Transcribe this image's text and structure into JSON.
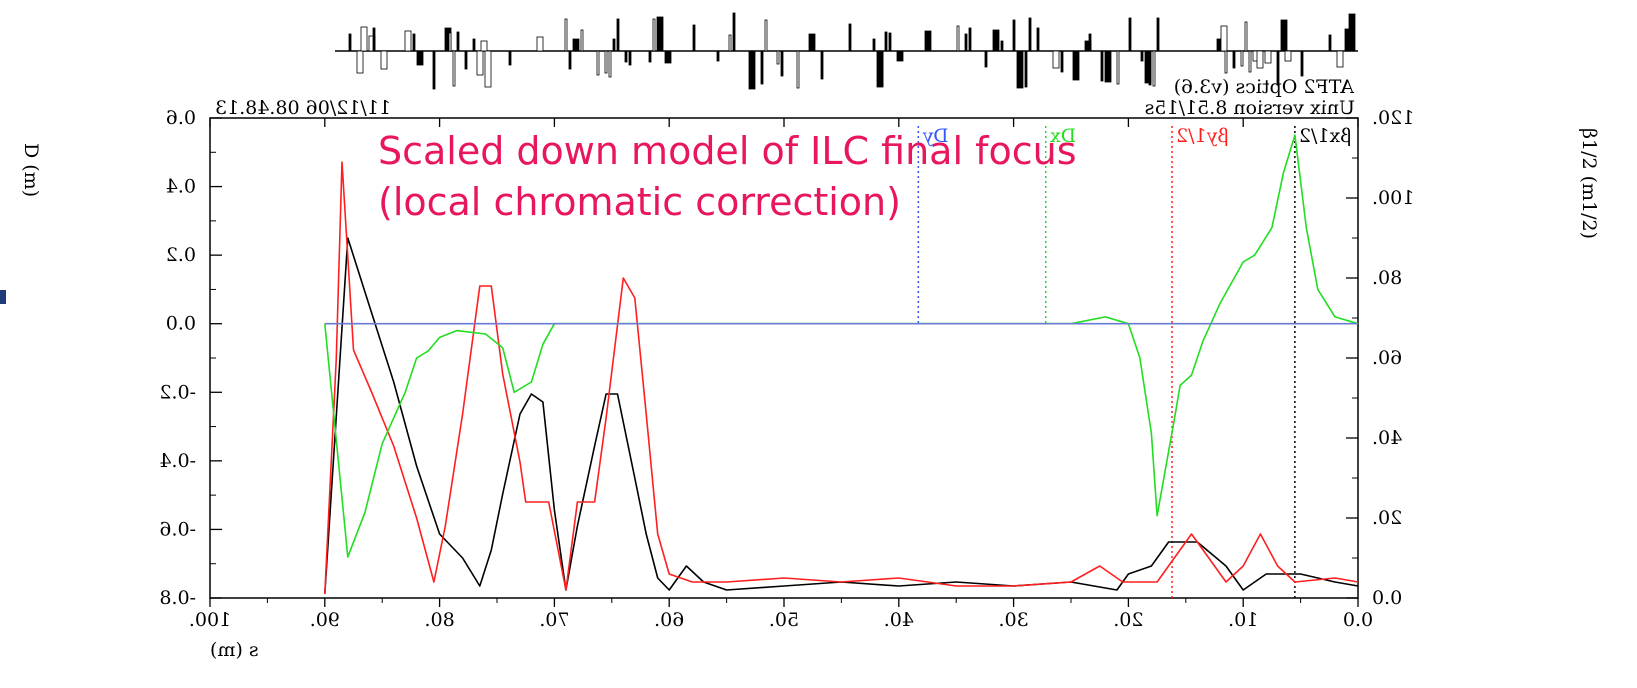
{
  "header": {
    "title": "ATF2 Optics (v3.6)",
    "version": "Unix version 8.51/15s",
    "date": "11/12/06 08.48.13"
  },
  "annotation": "Scaled down model of ILC final focus (local chromatic correction)",
  "colors": {
    "black": "#000000",
    "red": "#ff1f1f",
    "green": "#22dd22",
    "blue": "#3355ff",
    "axis_line": "#6a7bd6",
    "annotation": "#e8175d"
  },
  "chart_data": {
    "type": "line",
    "mirrored": true,
    "xlabel": "s (m)",
    "ylabel_left": "D (m)",
    "ylabel_right": "β1/2 (m1/2)",
    "xlim": [
      100,
      0
    ],
    "x_ticks": [
      "100.",
      "90.",
      "80.",
      "70.",
      "60.",
      "50.",
      "40.",
      "30.",
      "20.",
      "10.",
      "0.0"
    ],
    "x_tick_values": [
      100,
      90,
      80,
      70,
      60,
      50,
      40,
      30,
      20,
      10,
      0
    ],
    "ylim_left": [
      -0.8,
      0.6
    ],
    "y_ticks_left": [
      "0.6",
      "0.4",
      "0.2",
      "0.0",
      "-0.2",
      "-0.4",
      "-0.6",
      "-0.8"
    ],
    "y_tick_values_left": [
      0.6,
      0.4,
      0.2,
      0.0,
      -0.2,
      -0.4,
      -0.6,
      -0.8
    ],
    "ylim_right": [
      0,
      120
    ],
    "y_ticks_right": [
      "120.",
      "100.",
      "80.",
      "60.",
      "40.",
      "20.",
      "0.0"
    ],
    "y_tick_values_right": [
      120,
      100,
      80,
      60,
      40,
      20,
      0
    ],
    "legend": [
      {
        "name": "βx1/2",
        "color": "black",
        "marker_x": 5.5
      },
      {
        "name": "βy1/2",
        "color": "red",
        "marker_x": 16.2
      },
      {
        "name": "Dx",
        "color": "green",
        "marker_x": 27.2
      },
      {
        "name": "Dy",
        "color": "blue",
        "marker_x": 38.3
      }
    ],
    "series": [
      {
        "name": "βx1/2",
        "axis": "right",
        "color": "black",
        "points": [
          [
            90.0,
            1
          ],
          [
            88.0,
            90
          ],
          [
            86.0,
            72
          ],
          [
            84.0,
            54
          ],
          [
            82.0,
            33
          ],
          [
            80.0,
            16
          ],
          [
            78.0,
            10
          ],
          [
            76.5,
            3
          ],
          [
            75.5,
            12
          ],
          [
            74.5,
            26
          ],
          [
            73.0,
            46
          ],
          [
            72.0,
            51
          ],
          [
            71.0,
            49
          ],
          [
            70.0,
            22
          ],
          [
            69.0,
            2
          ],
          [
            68.0,
            18
          ],
          [
            66.5,
            38
          ],
          [
            65.5,
            51
          ],
          [
            64.5,
            51
          ],
          [
            63.0,
            30
          ],
          [
            62.0,
            16
          ],
          [
            61.0,
            5
          ],
          [
            60.0,
            2
          ],
          [
            58.5,
            8
          ],
          [
            57.0,
            4
          ],
          [
            55.0,
            2
          ],
          [
            50.0,
            3
          ],
          [
            45.0,
            4
          ],
          [
            40.0,
            3
          ],
          [
            35.0,
            4
          ],
          [
            30.0,
            3
          ],
          [
            25.0,
            4
          ],
          [
            21.0,
            2
          ],
          [
            20.0,
            6
          ],
          [
            18.0,
            8
          ],
          [
            16.5,
            14
          ],
          [
            14.0,
            14
          ],
          [
            11.5,
            8
          ],
          [
            10.0,
            2
          ],
          [
            8.0,
            6
          ],
          [
            5.0,
            6
          ],
          [
            2.0,
            4
          ],
          [
            0.0,
            3
          ]
        ]
      },
      {
        "name": "βy1/2",
        "axis": "right",
        "color": "red",
        "points": [
          [
            90.0,
            1
          ],
          [
            89.0,
            60
          ],
          [
            88.5,
            109
          ],
          [
            87.5,
            62
          ],
          [
            86.0,
            52
          ],
          [
            84.0,
            38
          ],
          [
            82.0,
            20
          ],
          [
            80.5,
            4
          ],
          [
            79.5,
            18
          ],
          [
            78.0,
            46
          ],
          [
            76.5,
            78
          ],
          [
            75.5,
            78
          ],
          [
            74.5,
            56
          ],
          [
            73.0,
            34
          ],
          [
            72.5,
            24
          ],
          [
            70.5,
            24
          ],
          [
            69.0,
            2
          ],
          [
            68.0,
            24
          ],
          [
            66.5,
            24
          ],
          [
            65.5,
            45
          ],
          [
            64.0,
            80
          ],
          [
            63.0,
            75
          ],
          [
            62.0,
            46
          ],
          [
            61.0,
            16
          ],
          [
            60.0,
            6
          ],
          [
            58.0,
            4
          ],
          [
            55.0,
            4
          ],
          [
            50.0,
            5
          ],
          [
            45.0,
            4
          ],
          [
            40.0,
            5
          ],
          [
            35.0,
            3
          ],
          [
            30.0,
            3
          ],
          [
            25.0,
            4
          ],
          [
            22.5,
            8
          ],
          [
            20.5,
            4
          ],
          [
            17.5,
            4
          ],
          [
            16.0,
            10
          ],
          [
            14.5,
            16
          ],
          [
            13.0,
            10
          ],
          [
            11.5,
            4
          ],
          [
            10.0,
            8
          ],
          [
            8.5,
            16
          ],
          [
            7.0,
            8
          ],
          [
            5.5,
            4
          ],
          [
            2.0,
            5
          ],
          [
            0.0,
            4
          ]
        ]
      },
      {
        "name": "Dx",
        "axis": "left",
        "color": "green",
        "points": [
          [
            90.0,
            0.0
          ],
          [
            88.0,
            -0.68
          ],
          [
            86.5,
            -0.55
          ],
          [
            85.0,
            -0.35
          ],
          [
            83.0,
            -0.2
          ],
          [
            82.0,
            -0.1
          ],
          [
            81.0,
            -0.08
          ],
          [
            80.0,
            -0.04
          ],
          [
            78.5,
            -0.02
          ],
          [
            76.0,
            -0.03
          ],
          [
            74.5,
            -0.07
          ],
          [
            73.5,
            -0.2
          ],
          [
            72.0,
            -0.17
          ],
          [
            71.0,
            -0.06
          ],
          [
            70.0,
            0.0
          ],
          [
            68.0,
            0.0
          ],
          [
            50.0,
            0.0
          ],
          [
            30.0,
            0.0
          ],
          [
            25.0,
            0.0
          ],
          [
            22.0,
            0.02
          ],
          [
            20.0,
            0.0
          ],
          [
            19.0,
            -0.1
          ],
          [
            18.0,
            -0.32
          ],
          [
            17.5,
            -0.56
          ],
          [
            16.0,
            -0.28
          ],
          [
            15.5,
            -0.18
          ],
          [
            14.5,
            -0.15
          ],
          [
            13.5,
            -0.05
          ],
          [
            12.0,
            0.06
          ],
          [
            10.0,
            0.18
          ],
          [
            9.0,
            0.2
          ],
          [
            7.5,
            0.28
          ],
          [
            6.5,
            0.44
          ],
          [
            5.5,
            0.55
          ],
          [
            4.5,
            0.28
          ],
          [
            3.5,
            0.1
          ],
          [
            2.0,
            0.02
          ],
          [
            0.0,
            0.0
          ]
        ]
      },
      {
        "name": "Dy",
        "axis": "left",
        "color": "blue",
        "points": [
          [
            90.0,
            0.0
          ],
          [
            0.0,
            0.0
          ]
        ]
      }
    ]
  }
}
